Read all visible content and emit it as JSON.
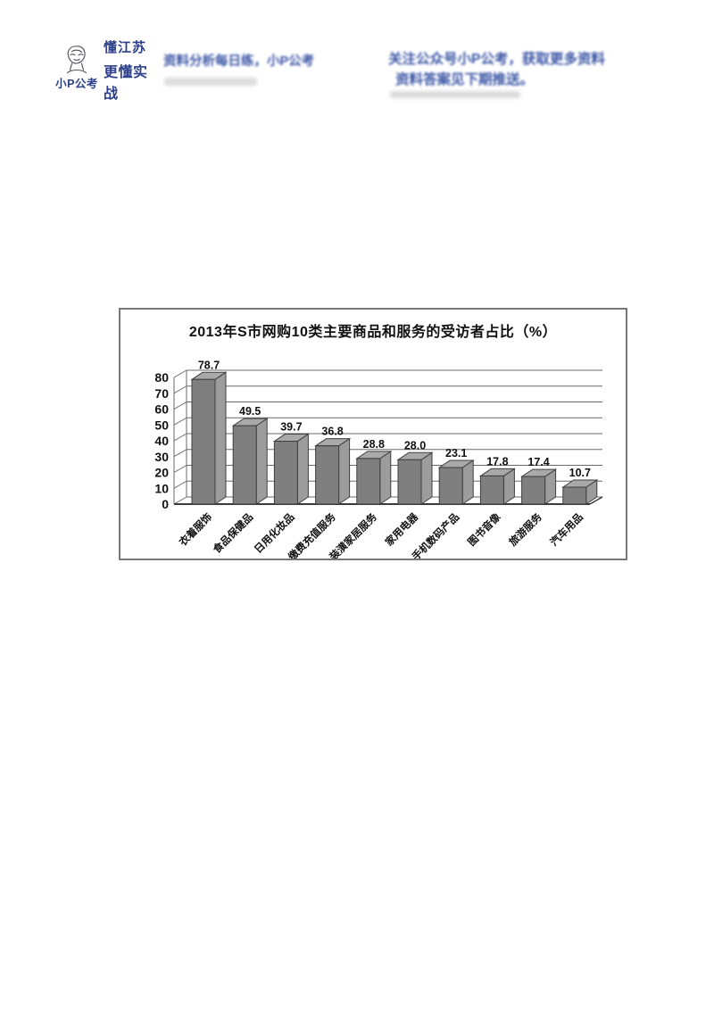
{
  "page": {
    "background": "#ffffff"
  },
  "logo": {
    "name": "小P公考",
    "slogan_line1": "懂江苏",
    "slogan_line2": "更懂实战",
    "color": "#2c3f8b",
    "mascot": "sketch-face-icon"
  },
  "header": {
    "color": "#3a55a4",
    "left_text": "资料分析每日练，小P公考",
    "right_line1": "关注公众号小P公考，获取更多资料",
    "right_line2": "资料答案见下期推送。"
  },
  "chart_data": {
    "type": "bar",
    "style": "3d-column",
    "title": "2013年S市网购10类主要商品和服务的受访者占比（%）",
    "categories": [
      "衣着服饰",
      "食品保健品",
      "日用化妆品",
      "缴费充值服务",
      "装潢家居服务",
      "家用电器",
      "手机数码产品",
      "图书音像",
      "旅游服务",
      "汽车用品"
    ],
    "values": [
      78.7,
      49.5,
      39.7,
      36.8,
      28.8,
      28.0,
      23.1,
      17.8,
      17.4,
      10.7
    ],
    "value_labels": [
      "78.7",
      "49.5",
      "39.7",
      "36.8",
      "28.8",
      "28.0",
      "23.1",
      "17.8",
      "17.4",
      "10.7"
    ],
    "xlabel": "",
    "ylabel": "",
    "ylim": [
      0,
      80
    ],
    "yticks": [
      0,
      10,
      20,
      30,
      40,
      50,
      60,
      70,
      80
    ],
    "grid": true,
    "legend_position": "none",
    "colors": {
      "bar_front": "#7f7f7f",
      "bar_side": "#9c9c9c",
      "bar_top": "#a9a9a9",
      "bar_outline": "#3f3f3f",
      "gridline": "#6a6a6a",
      "text": "#111111",
      "panel_border": "#787878"
    }
  }
}
